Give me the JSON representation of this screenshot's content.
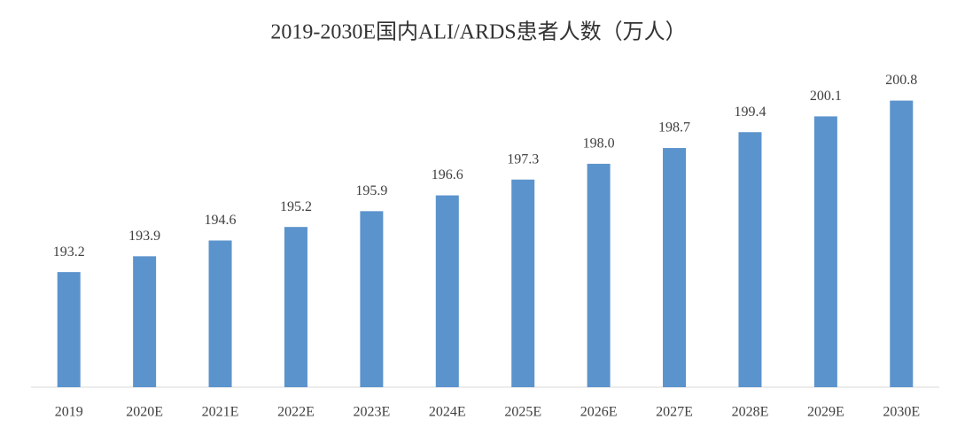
{
  "chart_data": {
    "type": "bar",
    "title": "2019-2030E国内ALI/ARDS患者人数（万人）",
    "categories": [
      "2019",
      "2020E",
      "2021E",
      "2022E",
      "2023E",
      "2024E",
      "2025E",
      "2026E",
      "2027E",
      "2028E",
      "2029E",
      "2030E"
    ],
    "values": [
      193.2,
      193.9,
      194.6,
      195.2,
      195.9,
      196.6,
      197.3,
      198.0,
      198.7,
      199.4,
      200.1,
      200.8
    ],
    "value_labels": [
      "193.2",
      "193.9",
      "194.6",
      "195.2",
      "195.9",
      "196.6",
      "197.3",
      "198.0",
      "198.7",
      "199.4",
      "200.1",
      "200.8"
    ],
    "color": "#5b93cc",
    "ylim": [
      188.1,
      202
    ],
    "grid": false
  }
}
